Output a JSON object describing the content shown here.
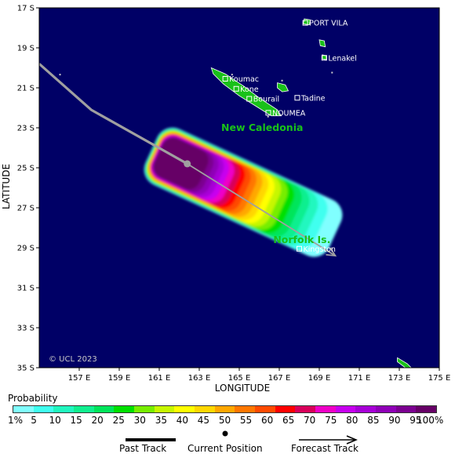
{
  "axes": {
    "xlabel": "LONGITUDE",
    "ylabel": "LATITUDE",
    "xlim": [
      155,
      175
    ],
    "ylim_south": [
      17,
      35
    ],
    "x_ticks": [
      "157 E",
      "159 E",
      "161 E",
      "163 E",
      "165 E",
      "167 E",
      "169 E",
      "171 E",
      "173 E",
      "175 E"
    ],
    "y_ticks": [
      "17 S",
      "19 S",
      "21 S",
      "23 S",
      "25 S",
      "27 S",
      "29 S",
      "31 S",
      "33 S",
      "35 S"
    ]
  },
  "map": {
    "ocean_color": "#000066",
    "land_color": "#19c119",
    "places": [
      {
        "name": "PORT VILA",
        "lon": 168.3,
        "lat": 17.75
      },
      {
        "name": "Lenakel",
        "lon": 169.25,
        "lat": 19.5
      },
      {
        "name": "Koumac",
        "lon": 164.3,
        "lat": 20.55
      },
      {
        "name": "Kone",
        "lon": 164.85,
        "lat": 21.05
      },
      {
        "name": "Bourail",
        "lon": 165.5,
        "lat": 21.55
      },
      {
        "name": "Tadine",
        "lon": 167.9,
        "lat": 21.5
      },
      {
        "name": "NOUMEA",
        "lon": 166.45,
        "lat": 22.25
      },
      {
        "name": "Kingston",
        "lon": 168.0,
        "lat": 29.05
      }
    ],
    "regions": [
      {
        "name": "New Caledonia",
        "lon": 164.1,
        "lat": 23.0
      },
      {
        "name": "Norfolk Is.",
        "lon": 166.7,
        "lat": 28.6
      }
    ],
    "credit": "© UCL 2023"
  },
  "track": {
    "past": [
      [
        155.0,
        19.8
      ],
      [
        157.6,
        22.1
      ],
      [
        162.4,
        24.8
      ]
    ],
    "current": [
      162.4,
      24.8
    ],
    "forecast": [
      [
        162.4,
        24.8
      ],
      [
        169.8,
        29.4
      ]
    ],
    "color": "#a0a0a0"
  },
  "legend": {
    "title": "Probability",
    "levels": [
      "1%",
      "5",
      "10",
      "15",
      "20",
      "25",
      "30",
      "35",
      "40",
      "45",
      "50",
      "55",
      "60",
      "65",
      "70",
      "75",
      "80",
      "85",
      "90",
      "95",
      "100%"
    ],
    "colors": [
      "#80ffff",
      "#3fffef",
      "#20f7bf",
      "#10ef8f",
      "#00e55a",
      "#00e000",
      "#77ee00",
      "#c7f700",
      "#ffff00",
      "#ffd700",
      "#ffa700",
      "#ff7700",
      "#ff4a00",
      "#ff0000",
      "#d8005a",
      "#ef00c7",
      "#c700ef",
      "#a700d7",
      "#8f00b7",
      "#7b0090",
      "#660066"
    ],
    "past_track_label": "Past Track",
    "current_position_label": "Current Position",
    "forecast_track_label": "Forecast Track"
  }
}
